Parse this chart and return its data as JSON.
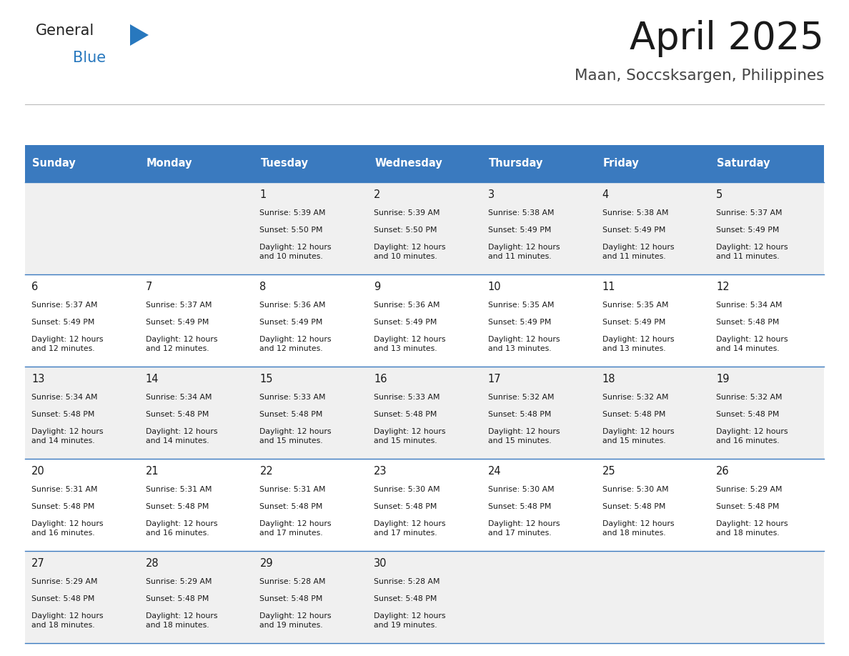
{
  "title": "April 2025",
  "subtitle": "Maan, Soccsksargen, Philippines",
  "header_bg": "#3a7abf",
  "header_text": "#ffffff",
  "row_bg_odd": "#f0f0f0",
  "row_bg_even": "#ffffff",
  "border_color": "#3a7abf",
  "days_of_week": [
    "Sunday",
    "Monday",
    "Tuesday",
    "Wednesday",
    "Thursday",
    "Friday",
    "Saturday"
  ],
  "calendar": [
    [
      {
        "day": "",
        "sunrise": "",
        "sunset": "",
        "daylight": ""
      },
      {
        "day": "",
        "sunrise": "",
        "sunset": "",
        "daylight": ""
      },
      {
        "day": "1",
        "sunrise": "Sunrise: 5:39 AM",
        "sunset": "Sunset: 5:50 PM",
        "daylight": "Daylight: 12 hours\nand 10 minutes."
      },
      {
        "day": "2",
        "sunrise": "Sunrise: 5:39 AM",
        "sunset": "Sunset: 5:50 PM",
        "daylight": "Daylight: 12 hours\nand 10 minutes."
      },
      {
        "day": "3",
        "sunrise": "Sunrise: 5:38 AM",
        "sunset": "Sunset: 5:49 PM",
        "daylight": "Daylight: 12 hours\nand 11 minutes."
      },
      {
        "day": "4",
        "sunrise": "Sunrise: 5:38 AM",
        "sunset": "Sunset: 5:49 PM",
        "daylight": "Daylight: 12 hours\nand 11 minutes."
      },
      {
        "day": "5",
        "sunrise": "Sunrise: 5:37 AM",
        "sunset": "Sunset: 5:49 PM",
        "daylight": "Daylight: 12 hours\nand 11 minutes."
      }
    ],
    [
      {
        "day": "6",
        "sunrise": "Sunrise: 5:37 AM",
        "sunset": "Sunset: 5:49 PM",
        "daylight": "Daylight: 12 hours\nand 12 minutes."
      },
      {
        "day": "7",
        "sunrise": "Sunrise: 5:37 AM",
        "sunset": "Sunset: 5:49 PM",
        "daylight": "Daylight: 12 hours\nand 12 minutes."
      },
      {
        "day": "8",
        "sunrise": "Sunrise: 5:36 AM",
        "sunset": "Sunset: 5:49 PM",
        "daylight": "Daylight: 12 hours\nand 12 minutes."
      },
      {
        "day": "9",
        "sunrise": "Sunrise: 5:36 AM",
        "sunset": "Sunset: 5:49 PM",
        "daylight": "Daylight: 12 hours\nand 13 minutes."
      },
      {
        "day": "10",
        "sunrise": "Sunrise: 5:35 AM",
        "sunset": "Sunset: 5:49 PM",
        "daylight": "Daylight: 12 hours\nand 13 minutes."
      },
      {
        "day": "11",
        "sunrise": "Sunrise: 5:35 AM",
        "sunset": "Sunset: 5:49 PM",
        "daylight": "Daylight: 12 hours\nand 13 minutes."
      },
      {
        "day": "12",
        "sunrise": "Sunrise: 5:34 AM",
        "sunset": "Sunset: 5:48 PM",
        "daylight": "Daylight: 12 hours\nand 14 minutes."
      }
    ],
    [
      {
        "day": "13",
        "sunrise": "Sunrise: 5:34 AM",
        "sunset": "Sunset: 5:48 PM",
        "daylight": "Daylight: 12 hours\nand 14 minutes."
      },
      {
        "day": "14",
        "sunrise": "Sunrise: 5:34 AM",
        "sunset": "Sunset: 5:48 PM",
        "daylight": "Daylight: 12 hours\nand 14 minutes."
      },
      {
        "day": "15",
        "sunrise": "Sunrise: 5:33 AM",
        "sunset": "Sunset: 5:48 PM",
        "daylight": "Daylight: 12 hours\nand 15 minutes."
      },
      {
        "day": "16",
        "sunrise": "Sunrise: 5:33 AM",
        "sunset": "Sunset: 5:48 PM",
        "daylight": "Daylight: 12 hours\nand 15 minutes."
      },
      {
        "day": "17",
        "sunrise": "Sunrise: 5:32 AM",
        "sunset": "Sunset: 5:48 PM",
        "daylight": "Daylight: 12 hours\nand 15 minutes."
      },
      {
        "day": "18",
        "sunrise": "Sunrise: 5:32 AM",
        "sunset": "Sunset: 5:48 PM",
        "daylight": "Daylight: 12 hours\nand 15 minutes."
      },
      {
        "day": "19",
        "sunrise": "Sunrise: 5:32 AM",
        "sunset": "Sunset: 5:48 PM",
        "daylight": "Daylight: 12 hours\nand 16 minutes."
      }
    ],
    [
      {
        "day": "20",
        "sunrise": "Sunrise: 5:31 AM",
        "sunset": "Sunset: 5:48 PM",
        "daylight": "Daylight: 12 hours\nand 16 minutes."
      },
      {
        "day": "21",
        "sunrise": "Sunrise: 5:31 AM",
        "sunset": "Sunset: 5:48 PM",
        "daylight": "Daylight: 12 hours\nand 16 minutes."
      },
      {
        "day": "22",
        "sunrise": "Sunrise: 5:31 AM",
        "sunset": "Sunset: 5:48 PM",
        "daylight": "Daylight: 12 hours\nand 17 minutes."
      },
      {
        "day": "23",
        "sunrise": "Sunrise: 5:30 AM",
        "sunset": "Sunset: 5:48 PM",
        "daylight": "Daylight: 12 hours\nand 17 minutes."
      },
      {
        "day": "24",
        "sunrise": "Sunrise: 5:30 AM",
        "sunset": "Sunset: 5:48 PM",
        "daylight": "Daylight: 12 hours\nand 17 minutes."
      },
      {
        "day": "25",
        "sunrise": "Sunrise: 5:30 AM",
        "sunset": "Sunset: 5:48 PM",
        "daylight": "Daylight: 12 hours\nand 18 minutes."
      },
      {
        "day": "26",
        "sunrise": "Sunrise: 5:29 AM",
        "sunset": "Sunset: 5:48 PM",
        "daylight": "Daylight: 12 hours\nand 18 minutes."
      }
    ],
    [
      {
        "day": "27",
        "sunrise": "Sunrise: 5:29 AM",
        "sunset": "Sunset: 5:48 PM",
        "daylight": "Daylight: 12 hours\nand 18 minutes."
      },
      {
        "day": "28",
        "sunrise": "Sunrise: 5:29 AM",
        "sunset": "Sunset: 5:48 PM",
        "daylight": "Daylight: 12 hours\nand 18 minutes."
      },
      {
        "day": "29",
        "sunrise": "Sunrise: 5:28 AM",
        "sunset": "Sunset: 5:48 PM",
        "daylight": "Daylight: 12 hours\nand 19 minutes."
      },
      {
        "day": "30",
        "sunrise": "Sunrise: 5:28 AM",
        "sunset": "Sunset: 5:48 PM",
        "daylight": "Daylight: 12 hours\nand 19 minutes."
      },
      {
        "day": "",
        "sunrise": "",
        "sunset": "",
        "daylight": ""
      },
      {
        "day": "",
        "sunrise": "",
        "sunset": "",
        "daylight": ""
      },
      {
        "day": "",
        "sunrise": "",
        "sunset": "",
        "daylight": ""
      }
    ]
  ],
  "logo_general_color": "#222222",
  "logo_blue_color": "#2878be",
  "logo_triangle_color": "#2878be",
  "title_color": "#1a1a1a",
  "subtitle_color": "#444444"
}
